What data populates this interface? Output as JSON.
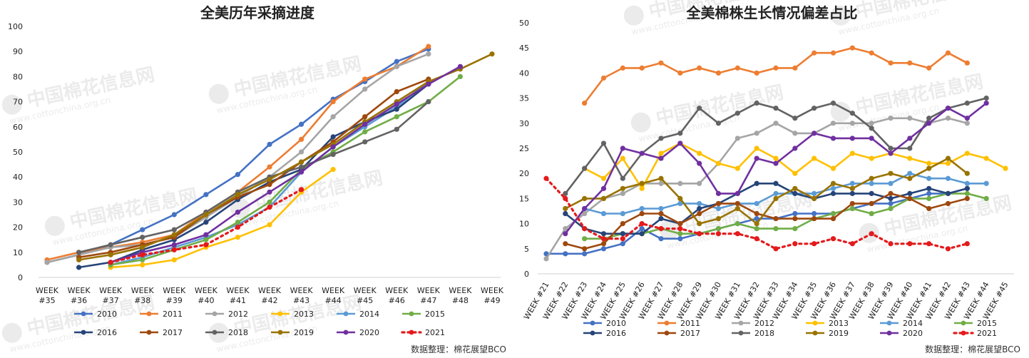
{
  "charts_meta": {
    "left_title": "全美历年采摘进度",
    "right_title": "全美棉株生长情况偏差占比",
    "source_left": "数据整理：棉花展望BCO",
    "source_right": "数据整理：棉花展望BCO",
    "watermark_cn": "中国棉花信息网",
    "watermark_url": "www.cottonchina.org.cn"
  },
  "colors": {
    "2010": "#4472c4",
    "2011": "#ed7d31",
    "2012": "#a5a5a5",
    "2013": "#ffc000",
    "2014": "#5b9bd5",
    "2015": "#70ad47",
    "2016": "#264478",
    "2017": "#9e480e",
    "2018": "#636363",
    "2019": "#997300",
    "2020": "#7030a0",
    "2021": "#e41a1c"
  },
  "chart_data": [
    {
      "type": "line",
      "title": "全美历年采摘进度",
      "categories": [
        "WEEK #35",
        "WEEK #36",
        "WEEK #37",
        "WEEK #38",
        "WEEK #39",
        "WEEK #40",
        "WEEK #41",
        "WEEK #42",
        "WEEK #43",
        "WEEK #44",
        "WEEK #45",
        "WEEK #46",
        "WEEK #47",
        "WEEK #48",
        "WEEK #49"
      ],
      "yticks": [
        0,
        10,
        20,
        30,
        40,
        50,
        60,
        70,
        80,
        90,
        100
      ],
      "ylim": [
        0,
        100
      ],
      "grid": false,
      "legend": "bottom",
      "series": [
        {
          "name": "2010",
          "values": [
            6,
            9,
            13,
            19,
            25,
            33,
            41,
            53,
            61,
            71,
            78,
            86,
            91,
            null,
            null
          ]
        },
        {
          "name": "2011",
          "values": [
            7,
            10,
            12,
            14,
            17,
            26,
            34,
            44,
            55,
            70,
            79,
            84,
            92,
            null,
            null
          ]
        },
        {
          "name": "2012",
          "values": [
            6,
            9,
            12,
            13,
            16,
            24,
            32,
            40,
            50,
            64,
            75,
            84,
            89,
            null,
            null
          ]
        },
        {
          "name": "2013",
          "values": [
            null,
            null,
            4,
            5,
            7,
            12,
            16,
            21,
            34,
            43,
            null,
            null,
            null,
            null,
            null
          ]
        },
        {
          "name": "2014",
          "values": [
            null,
            null,
            5,
            8,
            12,
            16,
            21,
            28,
            42,
            52,
            60,
            68,
            78,
            null,
            null
          ]
        },
        {
          "name": "2015",
          "values": [
            null,
            null,
            5,
            7,
            11,
            15,
            22,
            30,
            43,
            50,
            58,
            64,
            70,
            80,
            null
          ]
        },
        {
          "name": "2016",
          "values": [
            null,
            4,
            6,
            11,
            15,
            22,
            31,
            38,
            43,
            56,
            62,
            67,
            77,
            null,
            null
          ]
        },
        {
          "name": "2017",
          "values": [
            null,
            8,
            10,
            13,
            16,
            25,
            32,
            37,
            46,
            54,
            64,
            74,
            79,
            null,
            null
          ]
        },
        {
          "name": "2018",
          "values": [
            null,
            10,
            13,
            16,
            19,
            26,
            34,
            40,
            44,
            49,
            54,
            59,
            70,
            null,
            null
          ]
        },
        {
          "name": "2019",
          "values": [
            null,
            7,
            9,
            12,
            17,
            25,
            33,
            39,
            46,
            53,
            62,
            70,
            78,
            83,
            89
          ]
        },
        {
          "name": "2020",
          "values": [
            null,
            null,
            6,
            10,
            13,
            17,
            26,
            34,
            42,
            52,
            61,
            69,
            77,
            84,
            null
          ]
        },
        {
          "name": "2021",
          "values": [
            null,
            null,
            6,
            9,
            11,
            13,
            20,
            28,
            35,
            null,
            null,
            null,
            null,
            null,
            null
          ],
          "dashed": true
        }
      ]
    },
    {
      "type": "line",
      "title": "全美棉株生长情况偏差占比",
      "categories": [
        "WEEK #21",
        "WEEK #22",
        "WEEK #23",
        "WEEK #24",
        "WEEK #25",
        "WEEK #26",
        "WEEK #27",
        "WEEK #28",
        "WEEK #29",
        "WEEK #30",
        "WEEK #31",
        "WEEK #32",
        "WEEK #33",
        "WEEK #34",
        "WEEK #35",
        "WEEK #36",
        "WEEK #37",
        "WEEK #38",
        "WEEK #39",
        "WEEK #40",
        "WEEK #41",
        "WEEK #42",
        "WEEK #43",
        "WEEK #44",
        "WEEK #45"
      ],
      "yticks": [
        0,
        5,
        10,
        15,
        20,
        25,
        30,
        35,
        40,
        45,
        50
      ],
      "ylim": [
        0,
        50
      ],
      "grid": false,
      "legend": "bottom",
      "series": [
        {
          "name": "2010",
          "values": [
            4,
            4,
            4,
            5,
            6,
            9,
            7,
            7,
            8,
            9,
            10,
            11,
            11,
            12,
            12,
            12,
            13,
            14,
            14,
            15,
            16,
            16,
            17,
            null,
            null
          ]
        },
        {
          "name": "2011",
          "values": [
            null,
            null,
            34,
            39,
            41,
            41,
            42,
            40,
            41,
            40,
            41,
            40,
            41,
            41,
            44,
            44,
            45,
            44,
            42,
            42,
            41,
            44,
            42,
            null,
            null
          ]
        },
        {
          "name": "2012",
          "values": [
            3,
            9,
            12,
            15,
            16,
            18,
            18,
            18,
            18,
            22,
            27,
            28,
            30,
            28,
            28,
            30,
            30,
            30,
            31,
            31,
            30,
            31,
            30,
            null,
            null
          ]
        },
        {
          "name": "2013",
          "values": [
            null,
            null,
            21,
            19,
            23,
            17,
            24,
            26,
            24,
            22,
            21,
            25,
            23,
            20,
            23,
            21,
            24,
            23,
            24,
            23,
            22,
            22,
            24,
            23,
            21
          ]
        },
        {
          "name": "2014",
          "values": [
            null,
            null,
            13,
            12,
            12,
            13,
            13,
            14,
            14,
            13,
            14,
            14,
            16,
            16,
            16,
            17,
            18,
            18,
            18,
            20,
            19,
            19,
            18,
            18,
            null
          ]
        },
        {
          "name": "2015",
          "values": [
            null,
            null,
            7,
            7,
            8,
            8,
            9,
            8,
            8,
            9,
            10,
            9,
            9,
            9,
            11,
            12,
            13,
            12,
            13,
            15,
            15,
            16,
            16,
            15,
            null
          ]
        },
        {
          "name": "2016",
          "values": [
            null,
            12,
            9,
            8,
            8,
            8,
            11,
            10,
            13,
            14,
            16,
            18,
            18,
            16,
            15,
            16,
            16,
            16,
            15,
            16,
            17,
            16,
            17,
            null,
            null
          ]
        },
        {
          "name": "2017",
          "values": [
            null,
            6,
            5,
            6,
            10,
            12,
            12,
            10,
            12,
            14,
            14,
            12,
            11,
            11,
            11,
            11,
            14,
            14,
            16,
            15,
            13,
            14,
            15,
            null,
            null
          ]
        },
        {
          "name": "2018",
          "values": [
            null,
            16,
            21,
            26,
            19,
            24,
            27,
            28,
            33,
            30,
            32,
            34,
            33,
            31,
            33,
            34,
            32,
            29,
            25,
            25,
            31,
            33,
            34,
            35,
            null
          ]
        },
        {
          "name": "2019",
          "values": [
            null,
            13,
            15,
            15,
            17,
            18,
            19,
            15,
            10,
            11,
            13,
            10,
            15,
            17,
            15,
            18,
            17,
            19,
            20,
            19,
            21,
            23,
            20,
            null,
            null
          ]
        },
        {
          "name": "2020",
          "values": [
            null,
            8,
            13,
            17,
            25,
            24,
            23,
            26,
            22,
            16,
            16,
            23,
            22,
            25,
            28,
            27,
            27,
            27,
            24,
            27,
            30,
            33,
            31,
            34,
            null
          ]
        },
        {
          "name": "2021",
          "values": [
            19,
            15,
            9,
            7,
            7,
            10,
            9,
            9,
            8,
            8,
            8,
            7,
            5,
            6,
            6,
            7,
            6,
            8,
            6,
            6,
            6,
            5,
            6,
            null,
            null
          ],
          "dashed": true
        }
      ]
    }
  ]
}
